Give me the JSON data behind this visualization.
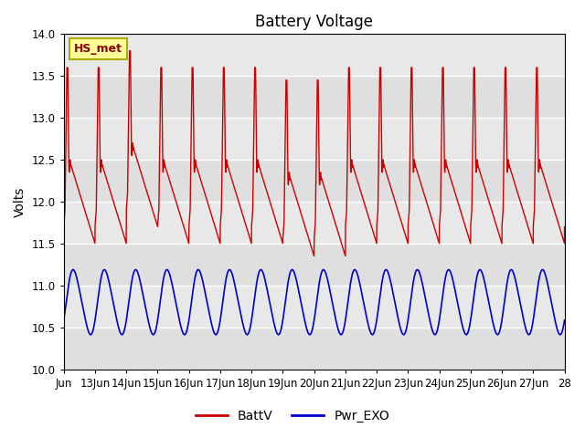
{
  "title": "Battery Voltage",
  "ylabel": "Volts",
  "ylim": [
    10.0,
    14.0
  ],
  "yticks": [
    10.0,
    10.5,
    11.0,
    11.5,
    12.0,
    12.5,
    13.0,
    13.5,
    14.0
  ],
  "xlim_days": [
    12,
    28
  ],
  "xtick_positions": [
    12,
    13,
    14,
    15,
    16,
    17,
    18,
    19,
    20,
    21,
    22,
    23,
    24,
    25,
    26,
    27,
    28
  ],
  "xtick_labels": [
    "Jun",
    "13Jun",
    "14Jun",
    "15Jun",
    "16Jun",
    "17Jun",
    "18Jun",
    "19Jun",
    "20Jun",
    "21Jun",
    "22Jun",
    "23Jun",
    "24Jun",
    "25Jun",
    "26Jun",
    "27Jun",
    "28"
  ],
  "battv_color": "#cc0000",
  "pwrexo_color": "#0000cc",
  "legend_box_label": "HS_met",
  "legend_box_facecolor": "#ffff99",
  "legend_box_edgecolor": "#aaaa00",
  "plot_bg_color": "#e8e8e8",
  "fig_bg_color": "#ffffff",
  "title_fontsize": 12,
  "axis_label_fontsize": 10,
  "tick_fontsize": 8.5
}
